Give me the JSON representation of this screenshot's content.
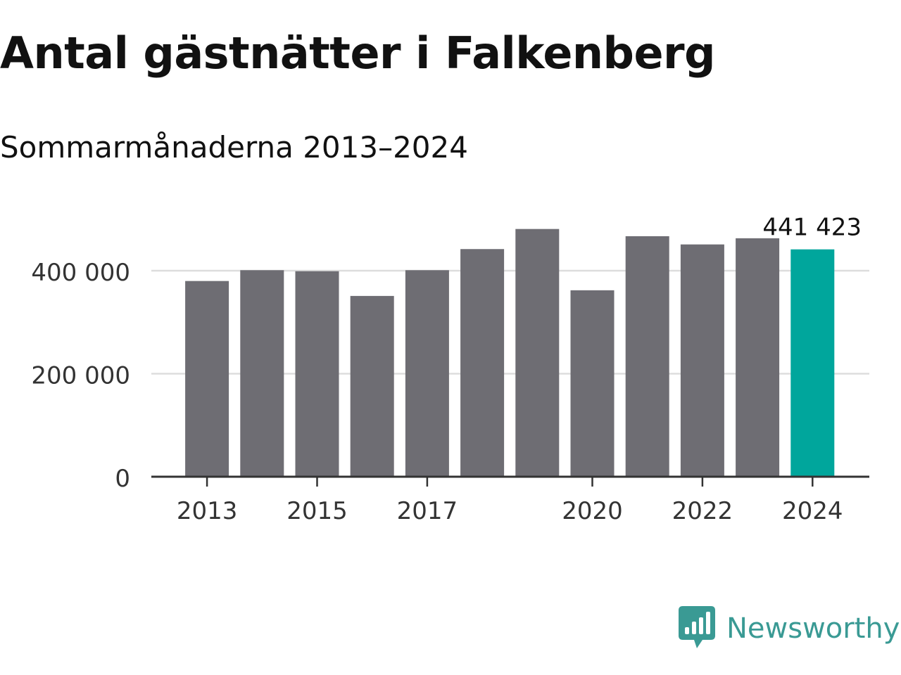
{
  "title": "Antal gästnätter i Falkenberg",
  "subtitle": "Sommarmånaderna 2013–2024",
  "chart_data": {
    "type": "bar",
    "categories": [
      "2013",
      "2014",
      "2015",
      "2016",
      "2017",
      "2018",
      "2019",
      "2020",
      "2021",
      "2022",
      "2023",
      "2024"
    ],
    "values": [
      380000,
      401000,
      399000,
      351000,
      401000,
      442000,
      481000,
      362000,
      467000,
      451000,
      463000,
      441423
    ],
    "x_tick_labels": [
      "2013",
      "2015",
      "2017",
      "2020",
      "2022",
      "2024"
    ],
    "y_ticks": [
      0,
      200000,
      400000
    ],
    "y_tick_labels": [
      "0",
      "200 000",
      "400 000"
    ],
    "ylim": [
      0,
      500000
    ],
    "data_label": "441 423",
    "highlight_index": 11,
    "grid": true,
    "colors": {
      "bar": "#6e6d73",
      "highlight": "#00a69c",
      "grid": "#dddddd",
      "axis": "#333333",
      "text": "#333333"
    }
  },
  "logo": {
    "text": "Newsworthy",
    "icon": "newsworthy-logo-icon",
    "color": "#3a9a94"
  }
}
